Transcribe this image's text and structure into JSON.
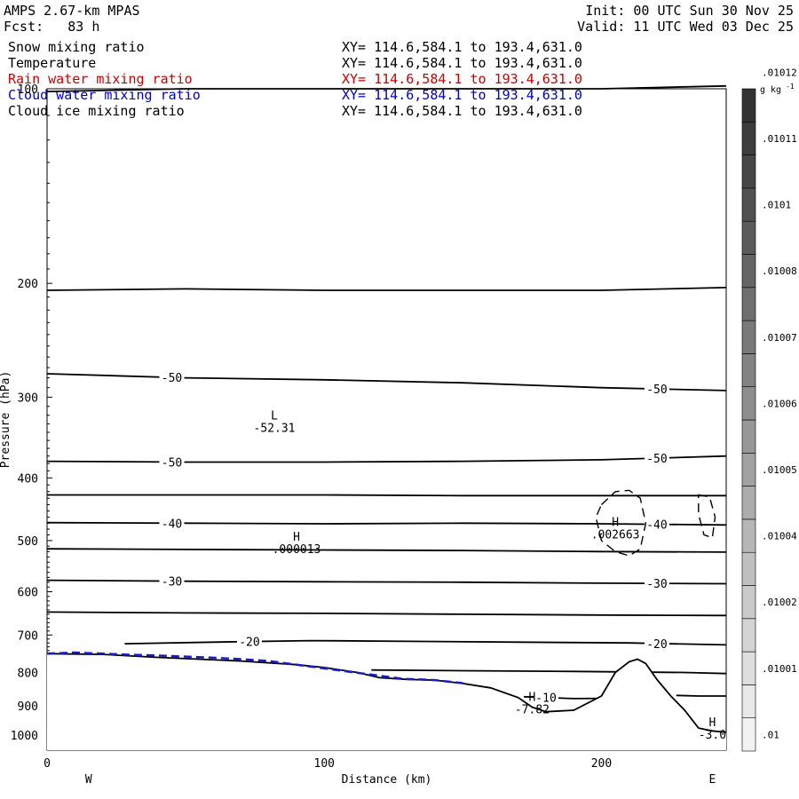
{
  "header": {
    "model": "AMPS 2.67-km MPAS",
    "init": "Init: 00 UTC Sun 30 Nov 25",
    "fcst": "Fcst:   83 h",
    "valid": "Valid: 11 UTC Wed 03 Dec 25"
  },
  "fields": [
    {
      "name": "Snow mixing ratio",
      "xy": "XY= 114.6,584.1 to 193.4,631.0",
      "color": "#000000"
    },
    {
      "name": "Temperature",
      "xy": "XY= 114.6,584.1 to 193.4,631.0",
      "color": "#000000"
    },
    {
      "name": "Rain water mixing ratio",
      "xy": "XY= 114.6,584.1 to 193.4,631.0",
      "color": "#cc0000"
    },
    {
      "name": "Cloud water mixing ratio",
      "xy": "XY= 114.6,584.1 to 193.4,631.0",
      "color": "#0000cc"
    },
    {
      "name": "Cloud ice mixing ratio",
      "xy": "XY= 114.6,584.1 to 193.4,631.0",
      "color": "#000000"
    }
  ],
  "chart_data": {
    "type": "line",
    "xlabel": "Distance (km)",
    "ylabel": "Pressure (hPa)",
    "xlim": [
      0,
      245
    ],
    "ylim": [
      1055,
      100
    ],
    "yscale": "log",
    "x_ticks": [
      0,
      100,
      200
    ],
    "y_ticks": [
      100,
      200,
      300,
      400,
      500,
      600,
      700,
      800,
      900,
      1000
    ],
    "x_end_labels": {
      "left": "W",
      "right": "E"
    },
    "temperature_contours": [
      {
        "level": "",
        "x": [
          0,
          50,
          100,
          150,
          200,
          245
        ],
        "y": [
          101,
          100,
          100,
          100,
          100,
          99
        ]
      },
      {
        "level": "",
        "x": [
          0,
          50,
          100,
          150,
          200,
          245
        ],
        "y": [
          205,
          204,
          205,
          205,
          205,
          203
        ]
      },
      {
        "level": "-50",
        "x": [
          0,
          50,
          100,
          150,
          200,
          245
        ],
        "y": [
          276,
          280,
          282,
          285,
          290,
          293
        ]
      },
      {
        "level": "-50",
        "x": [
          0,
          50,
          100,
          150,
          200,
          245
        ],
        "y": [
          377,
          378,
          378,
          377,
          375,
          370
        ]
      },
      {
        "level": "",
        "x": [
          0,
          50,
          100,
          150,
          200,
          245
        ],
        "y": [
          425,
          425,
          425,
          426,
          426,
          426
        ]
      },
      {
        "level": "-40",
        "x": [
          0,
          50,
          100,
          150,
          200,
          245
        ],
        "y": [
          469,
          470,
          471,
          470,
          471,
          473
        ]
      },
      {
        "level": "",
        "x": [
          0,
          50,
          100,
          150,
          200,
          245
        ],
        "y": [
          515,
          516,
          517,
          518,
          520,
          521
        ]
      },
      {
        "level": "-30",
        "x": [
          0,
          50,
          100,
          150,
          200,
          245
        ],
        "y": [
          576,
          578,
          579,
          580,
          582,
          583
        ]
      },
      {
        "level": "",
        "x": [
          0,
          50,
          100,
          150,
          200,
          245
        ],
        "y": [
          645,
          647,
          648,
          650,
          652,
          653
        ]
      },
      {
        "level": "-20",
        "x": [
          28,
          60,
          95,
          130,
          170,
          210,
          245
        ],
        "y": [
          722,
          718,
          714,
          716,
          718,
          720,
          725
        ]
      },
      {
        "level": "",
        "x": [
          117,
          150,
          190,
          230,
          245
        ],
        "y": [
          793,
          795,
          797,
          800,
          803
        ]
      },
      {
        "level": "-10",
        "x": [
          172,
          190,
          200,
          205
        ],
        "y": [
          872,
          878,
          877,
          870
        ]
      },
      {
        "level": "-10",
        "x": [
          227,
          235,
          245
        ],
        "y": [
          868,
          870,
          870
        ]
      }
    ],
    "terrain": {
      "x": [
        0,
        20,
        40,
        70,
        90,
        100,
        112,
        120,
        130,
        140,
        150,
        160,
        170,
        175,
        180,
        190,
        200,
        205,
        210,
        213,
        216,
        220,
        225,
        230,
        235,
        240,
        245
      ],
      "y": [
        748,
        750,
        758,
        768,
        778,
        786,
        800,
        815,
        820,
        822,
        832,
        845,
        875,
        905,
        920,
        915,
        870,
        800,
        770,
        763,
        775,
        820,
        870,
        915,
        975,
        985,
        990
      ]
    },
    "cloud_water": {
      "x": [
        0,
        10,
        20,
        30,
        40,
        50,
        60,
        70,
        80,
        128,
        140,
        150
      ],
      "y": [
        748,
        745,
        748,
        751,
        753,
        756,
        759,
        763,
        768,
        818,
        822,
        831
      ]
    },
    "cloud_ice_contours": [
      {
        "x": [
          200,
          205,
          210,
          214,
          216,
          214,
          210,
          205,
          200,
          198,
          200
        ],
        "y": [
          440,
          420,
          418,
          430,
          470,
          515,
          528,
          520,
          500,
          460,
          440
        ]
      },
      {
        "x": [
          235,
          239,
          241,
          240,
          237,
          235,
          235
        ],
        "y": [
          425,
          428,
          460,
          495,
          490,
          455,
          425
        ]
      }
    ],
    "annotations": [
      {
        "x": 82,
        "y": 325,
        "label": "L",
        "value": "-52.31"
      },
      {
        "x": 90,
        "y": 500,
        "label": "H",
        "value": ".000013"
      },
      {
        "x": 205,
        "y": 475,
        "label": "H",
        "value": ".002663"
      },
      {
        "x": 175,
        "y": 885,
        "label": "H",
        "value": "-7.82"
      },
      {
        "x": 240,
        "y": 968,
        "label": "H",
        "value": "-3.0"
      }
    ],
    "colorbar": {
      "unit": "g kg",
      "unit_sup": "-1",
      "tick_labels": [
        ".01",
        ".01001",
        ".01002",
        ".01004",
        ".01005",
        ".01006",
        ".01007",
        ".01008",
        ".0101",
        ".01011",
        ".01012"
      ],
      "n_boxes": 20,
      "light": "#f2f2f2",
      "dark": "#333333"
    }
  }
}
